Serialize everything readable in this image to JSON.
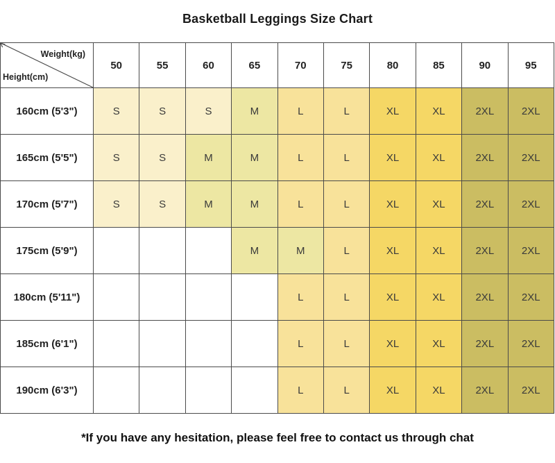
{
  "title": "Basketball Leggings Size Chart",
  "footer_note": "*If you have any hesitation, please feel free to contact us through chat",
  "chart_data": {
    "type": "table",
    "title": "Basketball Leggings Size Chart",
    "corner": {
      "top_right_label": "Weight(kg)",
      "bottom_left_label": "Height(cm)"
    },
    "weight_columns_kg": [
      "50",
      "55",
      "60",
      "65",
      "70",
      "75",
      "80",
      "85",
      "90",
      "95"
    ],
    "height_rows": [
      "160cm (5'3\")",
      "165cm (5'5\")",
      "170cm (5'7\")",
      "175cm (5'9\")",
      "180cm (5'11\")",
      "185cm (6'1\")",
      "190cm (6'3\")"
    ],
    "size_matrix": [
      [
        "S",
        "S",
        "S",
        "M",
        "L",
        "L",
        "XL",
        "XL",
        "2XL",
        "2XL"
      ],
      [
        "S",
        "S",
        "M",
        "M",
        "L",
        "L",
        "XL",
        "XL",
        "2XL",
        "2XL"
      ],
      [
        "S",
        "S",
        "M",
        "M",
        "L",
        "L",
        "XL",
        "XL",
        "2XL",
        "2XL"
      ],
      [
        "",
        "",
        "",
        "M",
        "M",
        "L",
        "XL",
        "XL",
        "2XL",
        "2XL"
      ],
      [
        "",
        "",
        "",
        "",
        "L",
        "L",
        "XL",
        "XL",
        "2XL",
        "2XL"
      ],
      [
        "",
        "",
        "",
        "",
        "L",
        "L",
        "XL",
        "XL",
        "2XL",
        "2XL"
      ],
      [
        "",
        "",
        "",
        "",
        "L",
        "L",
        "XL",
        "XL",
        "2XL",
        "2XL"
      ]
    ],
    "size_colors": {
      "S": "#faf0cb",
      "M": "#ede7a3",
      "L": "#f8e29a",
      "XL": "#f5d765",
      "2XL": "#cbbd62",
      "empty": "#ffffff"
    },
    "grid_color": "#4a4a4a",
    "text_color": "#3a3a3a"
  }
}
